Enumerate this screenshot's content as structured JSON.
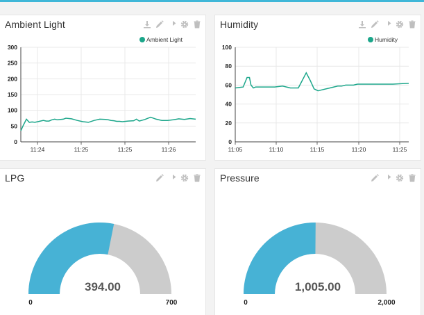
{
  "colors": {
    "accent": "#3fb7d8",
    "line": "#1ba68a",
    "gauge_fill": "#47b2d5",
    "gauge_bg": "#cccccc",
    "icon": "#bfbfbf"
  },
  "widgets": {
    "ambient": {
      "title": "Ambient Light",
      "toolbar_icons": [
        "download-icon",
        "edit-icon",
        "share-icon",
        "settings-icon",
        "delete-icon"
      ],
      "chart_data": {
        "type": "line",
        "series": [
          {
            "name": "Ambient Light",
            "x": [
              0.0,
              0.1,
              0.2,
              0.3,
              0.4,
              0.5,
              0.6,
              0.8,
              0.9,
              1.0,
              1.1,
              1.2,
              1.3,
              1.5,
              1.6,
              1.8,
              2.0,
              2.2,
              2.4,
              2.6,
              2.8,
              3.0,
              3.1,
              3.2,
              3.3,
              3.4,
              3.5,
              3.6,
              3.8,
              4.0,
              4.1,
              4.2,
              4.4,
              4.6,
              4.8,
              5.0,
              5.2,
              5.4,
              5.6,
              5.8,
              6.0,
              6.2
            ],
            "y": [
              35,
              55,
              72,
              62,
              63,
              62,
              64,
              68,
              66,
              66,
              70,
              72,
              70,
              72,
              75,
              73,
              68,
              64,
              62,
              68,
              72,
              71,
              70,
              68,
              67,
              65,
              65,
              64,
              66,
              67,
              72,
              66,
              71,
              78,
              72,
              68,
              68,
              70,
              73,
              71,
              74,
              72
            ]
          }
        ],
        "x_ticks": [
          "11:24",
          "11:25",
          "11:25",
          "11:26"
        ],
        "y_ticks": [
          0,
          50,
          100,
          150,
          200,
          250,
          300
        ],
        "ylim": [
          0,
          300
        ],
        "grid": true,
        "legend": "top-right"
      }
    },
    "humidity": {
      "title": "Humidity",
      "toolbar_icons": [
        "download-icon",
        "edit-icon",
        "share-icon",
        "settings-icon",
        "delete-icon"
      ],
      "chart_data": {
        "type": "line",
        "series": [
          {
            "name": "Humidity",
            "x": [
              0.0,
              1.0,
              1.5,
              1.8,
              2.0,
              2.3,
              2.6,
              3.0,
              4.0,
              5.0,
              6.0,
              7.0,
              8.0,
              8.5,
              9.0,
              9.5,
              10.0,
              10.5,
              11.0,
              12.0,
              13.0,
              13.5,
              14.0,
              14.5,
              15.0,
              15.5,
              16.0,
              18.0,
              20.0,
              22.0
            ],
            "y": [
              57,
              58,
              68,
              68,
              60,
              57,
              58,
              58,
              58,
              58,
              59,
              57,
              57,
              65,
              73,
              65,
              56,
              54,
              55,
              57,
              59,
              59,
              60,
              60,
              60,
              61,
              61,
              61,
              61,
              62
            ]
          }
        ],
        "x_ticks": [
          "11:05",
          "11:10",
          "11:15",
          "11:20",
          "11:25"
        ],
        "y_ticks": [
          0,
          20,
          40,
          60,
          80,
          100
        ],
        "ylim": [
          0,
          100
        ],
        "grid": true,
        "legend": "top-right"
      }
    },
    "lpg": {
      "title": "LPG",
      "toolbar_icons": [
        "edit-icon",
        "share-icon",
        "settings-icon",
        "delete-icon"
      ],
      "gauge": {
        "value": 394,
        "min": 0,
        "max": 700,
        "value_label": "394.00",
        "min_label": "0",
        "max_label": "700"
      }
    },
    "pressure": {
      "title": "Pressure",
      "toolbar_icons": [
        "edit-icon",
        "share-icon",
        "settings-icon",
        "delete-icon"
      ],
      "gauge": {
        "value": 1005,
        "min": 0,
        "max": 2000,
        "value_label": "1,005.00",
        "min_label": "0",
        "max_label": "2,000"
      }
    }
  }
}
